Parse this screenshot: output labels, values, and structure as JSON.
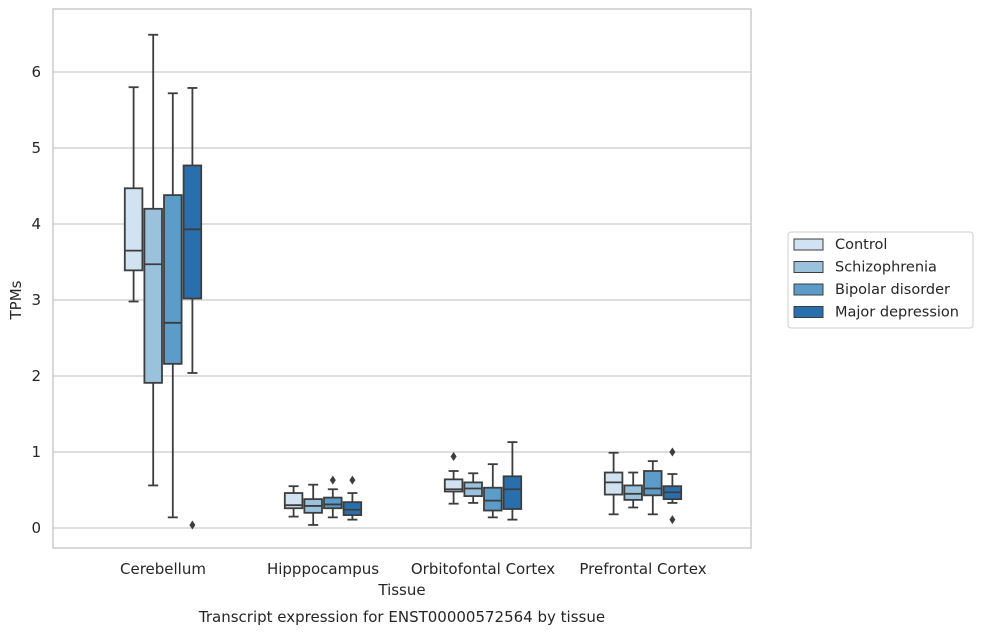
{
  "chart_data": {
    "type": "box",
    "title": "Transcript expression for ENST00000572564 by tissue",
    "xlabel": "Tissue",
    "ylabel": "TPMs",
    "ylim": [
      -0.27,
      6.8
    ],
    "yticks": [
      0,
      1,
      2,
      3,
      4,
      5,
      6
    ],
    "grid": "horizontal",
    "legend_position": "right",
    "categories": [
      "Cerebellum",
      "Hipppocampus",
      "Orbitofontal Cortex",
      "Prefrontal Cortex"
    ],
    "series": [
      {
        "name": "Control",
        "color": "#d1e2f1",
        "boxes": [
          {
            "whisker_low": 2.98,
            "q1": 3.39,
            "median": 3.65,
            "q3": 4.47,
            "whisker_high": 5.8,
            "outliers": []
          },
          {
            "whisker_low": 0.15,
            "q1": 0.26,
            "median": 0.3,
            "q3": 0.46,
            "whisker_high": 0.55,
            "outliers": []
          },
          {
            "whisker_low": 0.32,
            "q1": 0.48,
            "median": 0.51,
            "q3": 0.64,
            "whisker_high": 0.75,
            "outliers": [
              0.94
            ]
          },
          {
            "whisker_low": 0.18,
            "q1": 0.44,
            "median": 0.6,
            "q3": 0.73,
            "whisker_high": 0.99,
            "outliers": []
          }
        ]
      },
      {
        "name": "Schizophrenia",
        "color": "#9ac2dd",
        "boxes": [
          {
            "whisker_low": 0.56,
            "q1": 1.91,
            "median": 3.47,
            "q3": 4.2,
            "whisker_high": 6.49,
            "outliers": []
          },
          {
            "whisker_low": 0.04,
            "q1": 0.2,
            "median": 0.29,
            "q3": 0.38,
            "whisker_high": 0.57,
            "outliers": []
          },
          {
            "whisker_low": 0.33,
            "q1": 0.42,
            "median": 0.52,
            "q3": 0.6,
            "whisker_high": 0.72,
            "outliers": []
          },
          {
            "whisker_low": 0.27,
            "q1": 0.37,
            "median": 0.45,
            "q3": 0.56,
            "whisker_high": 0.73,
            "outliers": []
          }
        ]
      },
      {
        "name": "Bipolar disorder",
        "color": "#5b9cc9",
        "boxes": [
          {
            "whisker_low": 0.14,
            "q1": 2.16,
            "median": 2.7,
            "q3": 4.38,
            "whisker_high": 5.72,
            "outliers": []
          },
          {
            "whisker_low": 0.14,
            "q1": 0.26,
            "median": 0.31,
            "q3": 0.4,
            "whisker_high": 0.51,
            "outliers": [
              0.63
            ]
          },
          {
            "whisker_low": 0.14,
            "q1": 0.23,
            "median": 0.36,
            "q3": 0.53,
            "whisker_high": 0.84,
            "outliers": []
          },
          {
            "whisker_low": 0.18,
            "q1": 0.43,
            "median": 0.52,
            "q3": 0.75,
            "whisker_high": 0.88,
            "outliers": []
          }
        ]
      },
      {
        "name": "Major depression",
        "color": "#2a6fad",
        "boxes": [
          {
            "whisker_low": 2.04,
            "q1": 3.02,
            "median": 3.93,
            "q3": 4.77,
            "whisker_high": 5.79,
            "outliers": [
              0.04
            ]
          },
          {
            "whisker_low": 0.11,
            "q1": 0.17,
            "median": 0.24,
            "q3": 0.34,
            "whisker_high": 0.46,
            "outliers": [
              0.63
            ]
          },
          {
            "whisker_low": 0.11,
            "q1": 0.25,
            "median": 0.51,
            "q3": 0.68,
            "whisker_high": 1.13,
            "outliers": []
          },
          {
            "whisker_low": 0.33,
            "q1": 0.38,
            "median": 0.47,
            "q3": 0.55,
            "whisker_high": 0.71,
            "outliers": [
              1.0,
              0.11
            ]
          }
        ]
      }
    ]
  }
}
